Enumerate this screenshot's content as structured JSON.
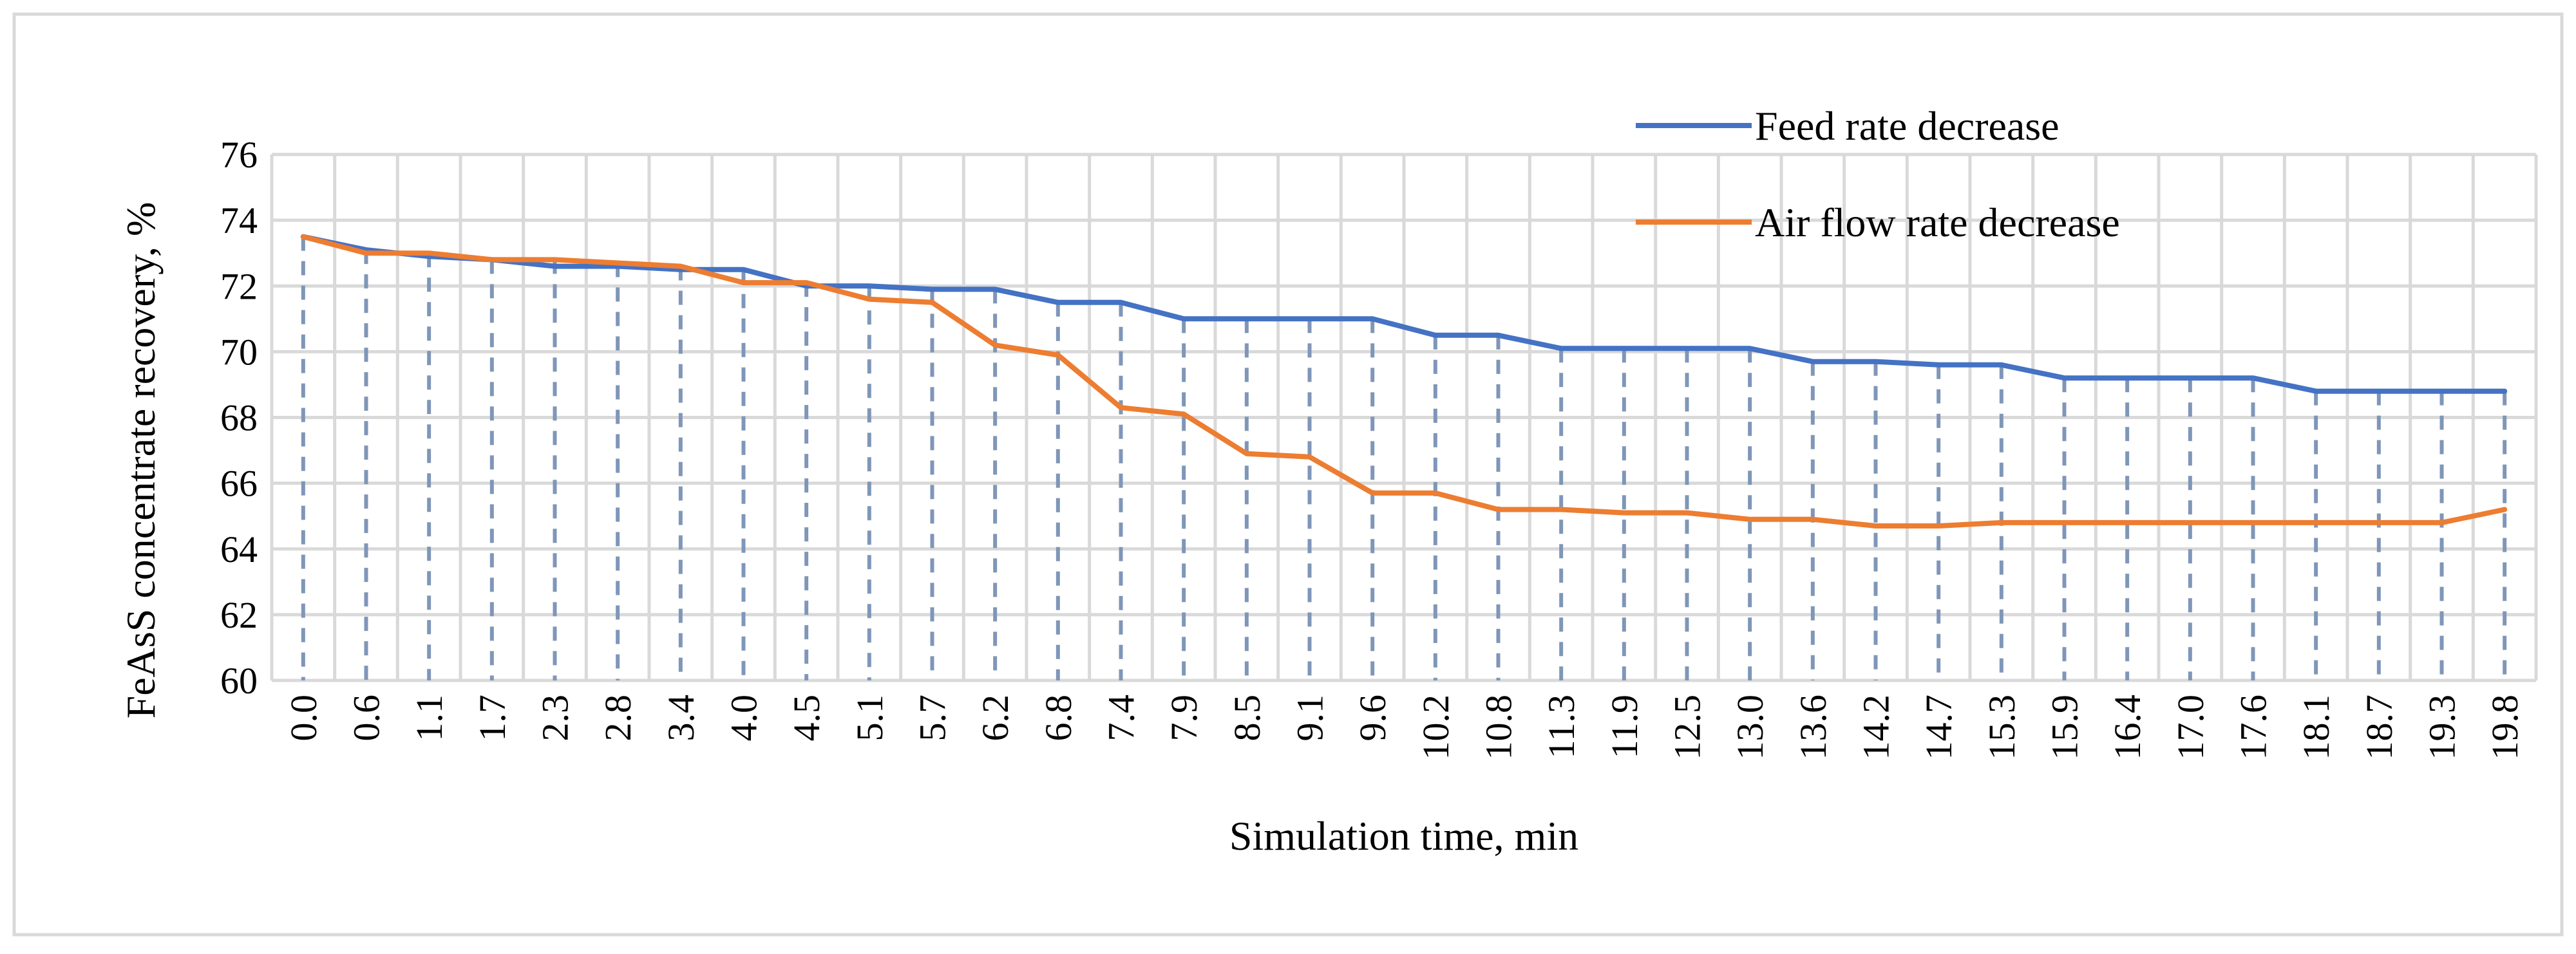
{
  "chart_data": {
    "type": "line",
    "title": "",
    "xlabel": "Simulation time, min",
    "ylabel": "FeAsS concentrate recovery, %",
    "ylim": [
      60,
      76
    ],
    "yticks": [
      "60",
      "62",
      "64",
      "66",
      "68",
      "70",
      "72",
      "74",
      "76"
    ],
    "categories": [
      "0.0",
      "0.6",
      "1.1",
      "1.7",
      "2.3",
      "2.8",
      "3.4",
      "4.0",
      "4.5",
      "5.1",
      "5.7",
      "6.2",
      "6.8",
      "7.4",
      "7.9",
      "8.5",
      "9.1",
      "9.6",
      "10.2",
      "10.8",
      "11.3",
      "11.9",
      "12.5",
      "13.0",
      "13.6",
      "14.2",
      "14.7",
      "15.3",
      "15.9",
      "16.4",
      "17.0",
      "17.6",
      "18.1",
      "18.7",
      "19.3",
      "19.8"
    ],
    "grid": true,
    "drop_lines": true,
    "legend_position": "top-right",
    "series": [
      {
        "name": "Feed rate decrease",
        "color": "#4472C4",
        "values": [
          73.5,
          73.1,
          72.9,
          72.8,
          72.6,
          72.6,
          72.5,
          72.5,
          72.0,
          72.0,
          71.9,
          71.9,
          71.5,
          71.5,
          71.0,
          71.0,
          71.0,
          71.0,
          70.5,
          70.5,
          70.1,
          70.1,
          70.1,
          70.1,
          69.7,
          69.7,
          69.6,
          69.6,
          69.2,
          69.2,
          69.2,
          69.2,
          68.8,
          68.8,
          68.8,
          68.8
        ]
      },
      {
        "name": "Air flow rate decrease",
        "color": "#ED7D31",
        "values": [
          73.5,
          73.0,
          73.0,
          72.8,
          72.8,
          72.7,
          72.6,
          72.1,
          72.1,
          71.6,
          71.5,
          70.2,
          69.9,
          68.3,
          68.1,
          66.9,
          66.8,
          65.7,
          65.7,
          65.2,
          65.2,
          65.1,
          65.1,
          64.9,
          64.9,
          64.7,
          64.7,
          64.8,
          64.8,
          64.8,
          64.8,
          64.8,
          64.8,
          64.8,
          64.8,
          65.2
        ]
      }
    ]
  }
}
